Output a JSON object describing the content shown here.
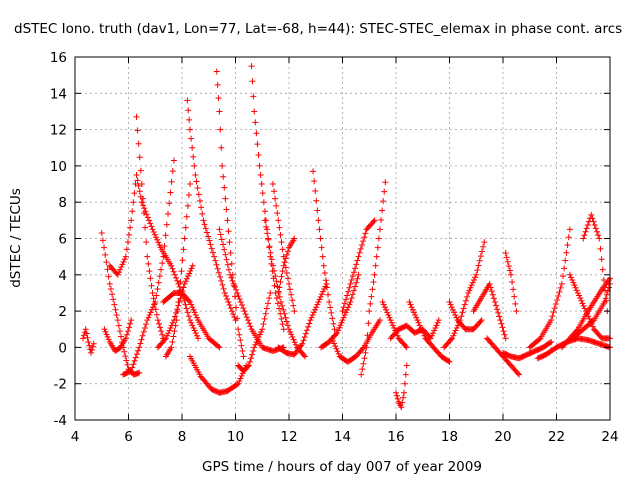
{
  "chart_data": {
    "type": "scatter",
    "title": "dSTEC Iono. truth (dav1, Lon=77, Lat=-68, h=44): STEC-STEC_elemax in phase cont. arcs",
    "xlabel": "GPS time / hours of day 007 of year 2009",
    "ylabel": "dSTEC  / TECUs",
    "xlim": [
      4,
      24
    ],
    "ylim": [
      -4,
      16
    ],
    "xticks": [
      4,
      6,
      8,
      10,
      12,
      14,
      16,
      18,
      20,
      22,
      24
    ],
    "yticks": [
      -4,
      -2,
      0,
      2,
      4,
      6,
      8,
      10,
      12,
      14,
      16
    ],
    "grid": true,
    "marker": "+",
    "color": "#ff0000",
    "series": [
      {
        "name": "",
        "x": [
          4.3,
          4.4,
          4.5,
          4.6,
          4.7
        ],
        "y": [
          0.5,
          1.0,
          0.3,
          -0.3,
          0.2
        ]
      },
      {
        "name": "",
        "x": [
          5.0,
          5.3,
          5.6,
          5.8,
          6.0,
          6.2,
          6.4
        ],
        "y": [
          6.3,
          3.5,
          1.5,
          0.0,
          -1.2,
          -1.5,
          -1.4
        ]
      },
      {
        "name": "",
        "x": [
          5.1,
          5.3,
          5.5,
          5.7,
          5.9,
          6.1
        ],
        "y": [
          1.0,
          0.3,
          -0.2,
          0.0,
          0.5,
          1.5
        ]
      },
      {
        "name": "",
        "x": [
          5.3,
          5.6,
          5.9,
          6.1,
          6.3,
          6.5
        ],
        "y": [
          4.5,
          4.0,
          5.0,
          7.0,
          9.5,
          8.0
        ]
      },
      {
        "name": "",
        "x": [
          6.3,
          6.5,
          6.7,
          6.9,
          7.1,
          7.3
        ],
        "y": [
          12.7,
          9.0,
          5.0,
          3.0,
          1.5,
          0.5
        ]
      },
      {
        "name": "",
        "x": [
          5.8,
          6.1,
          6.4,
          6.7,
          7.0,
          7.3,
          7.7
        ],
        "y": [
          -1.5,
          -1.3,
          0.0,
          1.5,
          2.5,
          5.0,
          10.3
        ]
      },
      {
        "name": "",
        "x": [
          6.5,
          6.9,
          7.2,
          7.6,
          8.0,
          8.3,
          8.6
        ],
        "y": [
          8.0,
          6.5,
          5.5,
          4.5,
          3.0,
          1.5,
          0.5
        ]
      },
      {
        "name": "",
        "x": [
          7.1,
          7.4,
          7.7,
          7.9,
          8.1,
          8.4
        ],
        "y": [
          0.0,
          0.5,
          1.5,
          2.5,
          3.5,
          4.5
        ]
      },
      {
        "name": "",
        "x": [
          7.3,
          7.7,
          8.0,
          8.3,
          8.6,
          9.0,
          9.4
        ],
        "y": [
          2.5,
          3.0,
          3.0,
          2.5,
          1.5,
          0.5,
          0.0
        ]
      },
      {
        "name": "",
        "x": [
          7.4,
          7.6,
          7.8,
          7.9,
          8.1,
          8.3
        ],
        "y": [
          -0.5,
          0.0,
          1.5,
          3.0,
          6.0,
          9.0
        ]
      },
      {
        "name": "",
        "x": [
          8.2,
          8.3,
          8.5,
          8.8,
          9.2,
          9.6,
          10.0
        ],
        "y": [
          13.6,
          12.0,
          9.5,
          7.0,
          5.0,
          3.0,
          1.5
        ]
      },
      {
        "name": "",
        "x": [
          8.3,
          8.7,
          9.1,
          9.4,
          9.7,
          10.1,
          10.4
        ],
        "y": [
          -0.5,
          -1.6,
          -2.3,
          -2.5,
          -2.4,
          -2.0,
          -1.0
        ]
      },
      {
        "name": "",
        "x": [
          9.3,
          9.4,
          9.5,
          9.7,
          9.9,
          10.1,
          10.3
        ],
        "y": [
          15.2,
          13.0,
          10.0,
          7.0,
          4.0,
          1.0,
          -0.5
        ]
      },
      {
        "name": "",
        "x": [
          9.4,
          9.8,
          10.2,
          10.6,
          11.0,
          11.4,
          11.8
        ],
        "y": [
          6.5,
          4.0,
          2.5,
          1.0,
          0.0,
          -0.2,
          0.0
        ]
      },
      {
        "name": "",
        "x": [
          10.1,
          10.3,
          10.5,
          10.7,
          11.0,
          11.3
        ],
        "y": [
          -1.0,
          -1.3,
          -1.0,
          0.0,
          1.0,
          3.0
        ]
      },
      {
        "name": "",
        "x": [
          10.6,
          10.7,
          10.9,
          11.1,
          11.3,
          11.5,
          11.8
        ],
        "y": [
          15.5,
          13.0,
          10.0,
          7.5,
          5.0,
          3.0,
          1.0
        ]
      },
      {
        "name": "",
        "x": [
          11.1,
          11.4,
          11.7,
          12.0,
          12.3,
          12.6
        ],
        "y": [
          7.0,
          4.5,
          2.5,
          1.0,
          0.0,
          -0.5
        ]
      },
      {
        "name": "",
        "x": [
          11.4,
          11.6,
          11.8,
          12.0,
          12.2
        ],
        "y": [
          9.0,
          7.0,
          5.0,
          3.5,
          2.0
        ]
      },
      {
        "name": "",
        "x": [
          11.6,
          11.8,
          12.0,
          12.2
        ],
        "y": [
          3.0,
          4.5,
          5.5,
          6.0
        ]
      },
      {
        "name": "",
        "x": [
          11.6,
          11.9,
          12.2,
          12.5,
          12.8,
          13.1,
          13.4
        ],
        "y": [
          0.0,
          -0.3,
          -0.4,
          0.2,
          1.5,
          2.5,
          3.5
        ]
      },
      {
        "name": "",
        "x": [
          12.9,
          13.1,
          13.3,
          13.5,
          13.7
        ],
        "y": [
          9.7,
          7.0,
          4.5,
          2.5,
          1.0
        ]
      },
      {
        "name": "",
        "x": [
          13.2,
          13.5,
          13.8,
          14.0,
          14.3,
          14.6
        ],
        "y": [
          0.0,
          0.3,
          0.8,
          1.5,
          2.5,
          4.0
        ]
      },
      {
        "name": "",
        "x": [
          13.6,
          13.9,
          14.2,
          14.5,
          14.8,
          15.1,
          15.4
        ],
        "y": [
          0.5,
          -0.5,
          -0.8,
          -0.5,
          0.0,
          0.8,
          1.5
        ]
      },
      {
        "name": "",
        "x": [
          14.0,
          14.3,
          14.6,
          14.9,
          15.2
        ],
        "y": [
          2.0,
          3.5,
          5.0,
          6.5,
          7.0
        ]
      },
      {
        "name": "",
        "x": [
          14.7,
          14.9,
          15.0,
          15.2,
          15.4,
          15.6
        ],
        "y": [
          -1.5,
          0.0,
          2.0,
          4.0,
          6.5,
          9.1
        ]
      },
      {
        "name": "",
        "x": [
          15.5,
          15.8,
          16.1,
          16.4
        ],
        "y": [
          2.5,
          1.5,
          0.5,
          0.0
        ]
      },
      {
        "name": "",
        "x": [
          16.0,
          16.1,
          16.2,
          16.3,
          16.4
        ],
        "y": [
          -2.5,
          -3.0,
          -3.3,
          -2.5,
          -1.0
        ]
      },
      {
        "name": "",
        "x": [
          15.8,
          16.1,
          16.4,
          16.7,
          17.0,
          17.3,
          17.6
        ],
        "y": [
          0.5,
          1.0,
          1.2,
          0.8,
          1.0,
          0.5,
          1.5
        ]
      },
      {
        "name": "",
        "x": [
          16.5,
          16.8,
          17.1,
          17.4,
          17.7,
          18.0
        ],
        "y": [
          2.5,
          1.5,
          0.5,
          0.0,
          -0.5,
          -0.8
        ]
      },
      {
        "name": "",
        "x": [
          17.8,
          18.1,
          18.4,
          18.7,
          19.0,
          19.3
        ],
        "y": [
          0.0,
          0.5,
          1.5,
          3.0,
          4.0,
          5.8
        ]
      },
      {
        "name": "",
        "x": [
          18.0,
          18.3,
          18.6,
          18.9,
          19.2
        ],
        "y": [
          2.5,
          1.5,
          1.0,
          1.0,
          1.5
        ]
      },
      {
        "name": "",
        "x": [
          18.9,
          19.1,
          19.3,
          19.5,
          19.7,
          19.9,
          20.1
        ],
        "y": [
          2.0,
          2.5,
          3.0,
          3.5,
          2.5,
          1.5,
          0.5
        ]
      },
      {
        "name": "",
        "x": [
          19.4,
          19.7,
          20.0,
          20.3,
          20.6
        ],
        "y": [
          0.5,
          0.0,
          -0.5,
          -1.0,
          -1.5
        ]
      },
      {
        "name": "",
        "x": [
          20.0,
          20.3,
          20.6,
          20.9,
          21.2,
          21.5,
          21.8
        ],
        "y": [
          -0.3,
          -0.5,
          -0.6,
          -0.4,
          -0.2,
          0.0,
          0.3
        ]
      },
      {
        "name": "",
        "x": [
          20.1,
          20.3,
          20.5
        ],
        "y": [
          5.2,
          4.0,
          2.0
        ]
      },
      {
        "name": "",
        "x": [
          21.0,
          21.4,
          21.8,
          22.2,
          22.5
        ],
        "y": [
          0.0,
          0.5,
          1.5,
          3.5,
          6.5
        ]
      },
      {
        "name": "",
        "x": [
          21.3,
          21.6,
          22.0,
          22.4,
          22.8,
          23.2,
          23.6,
          24.0
        ],
        "y": [
          -0.6,
          -0.4,
          0.0,
          0.3,
          0.5,
          0.4,
          0.2,
          0.0
        ]
      },
      {
        "name": "",
        "x": [
          22.2,
          22.5,
          22.8,
          23.1,
          23.4,
          23.7,
          24.0
        ],
        "y": [
          0.0,
          0.5,
          1.0,
          1.8,
          2.5,
          3.2,
          3.8
        ]
      },
      {
        "name": "",
        "x": [
          22.5,
          22.8,
          23.1,
          23.4,
          23.7,
          24.0
        ],
        "y": [
          4.0,
          3.0,
          2.0,
          1.0,
          0.5,
          0.5
        ]
      },
      {
        "name": "",
        "x": [
          23.0,
          23.3,
          23.6,
          23.9
        ],
        "y": [
          6.0,
          7.3,
          6.0,
          2.0
        ]
      },
      {
        "name": "",
        "x": [
          22.6,
          23.0,
          23.4,
          23.8,
          24.0
        ],
        "y": [
          0.5,
          1.0,
          1.5,
          2.5,
          3.5
        ]
      }
    ]
  }
}
